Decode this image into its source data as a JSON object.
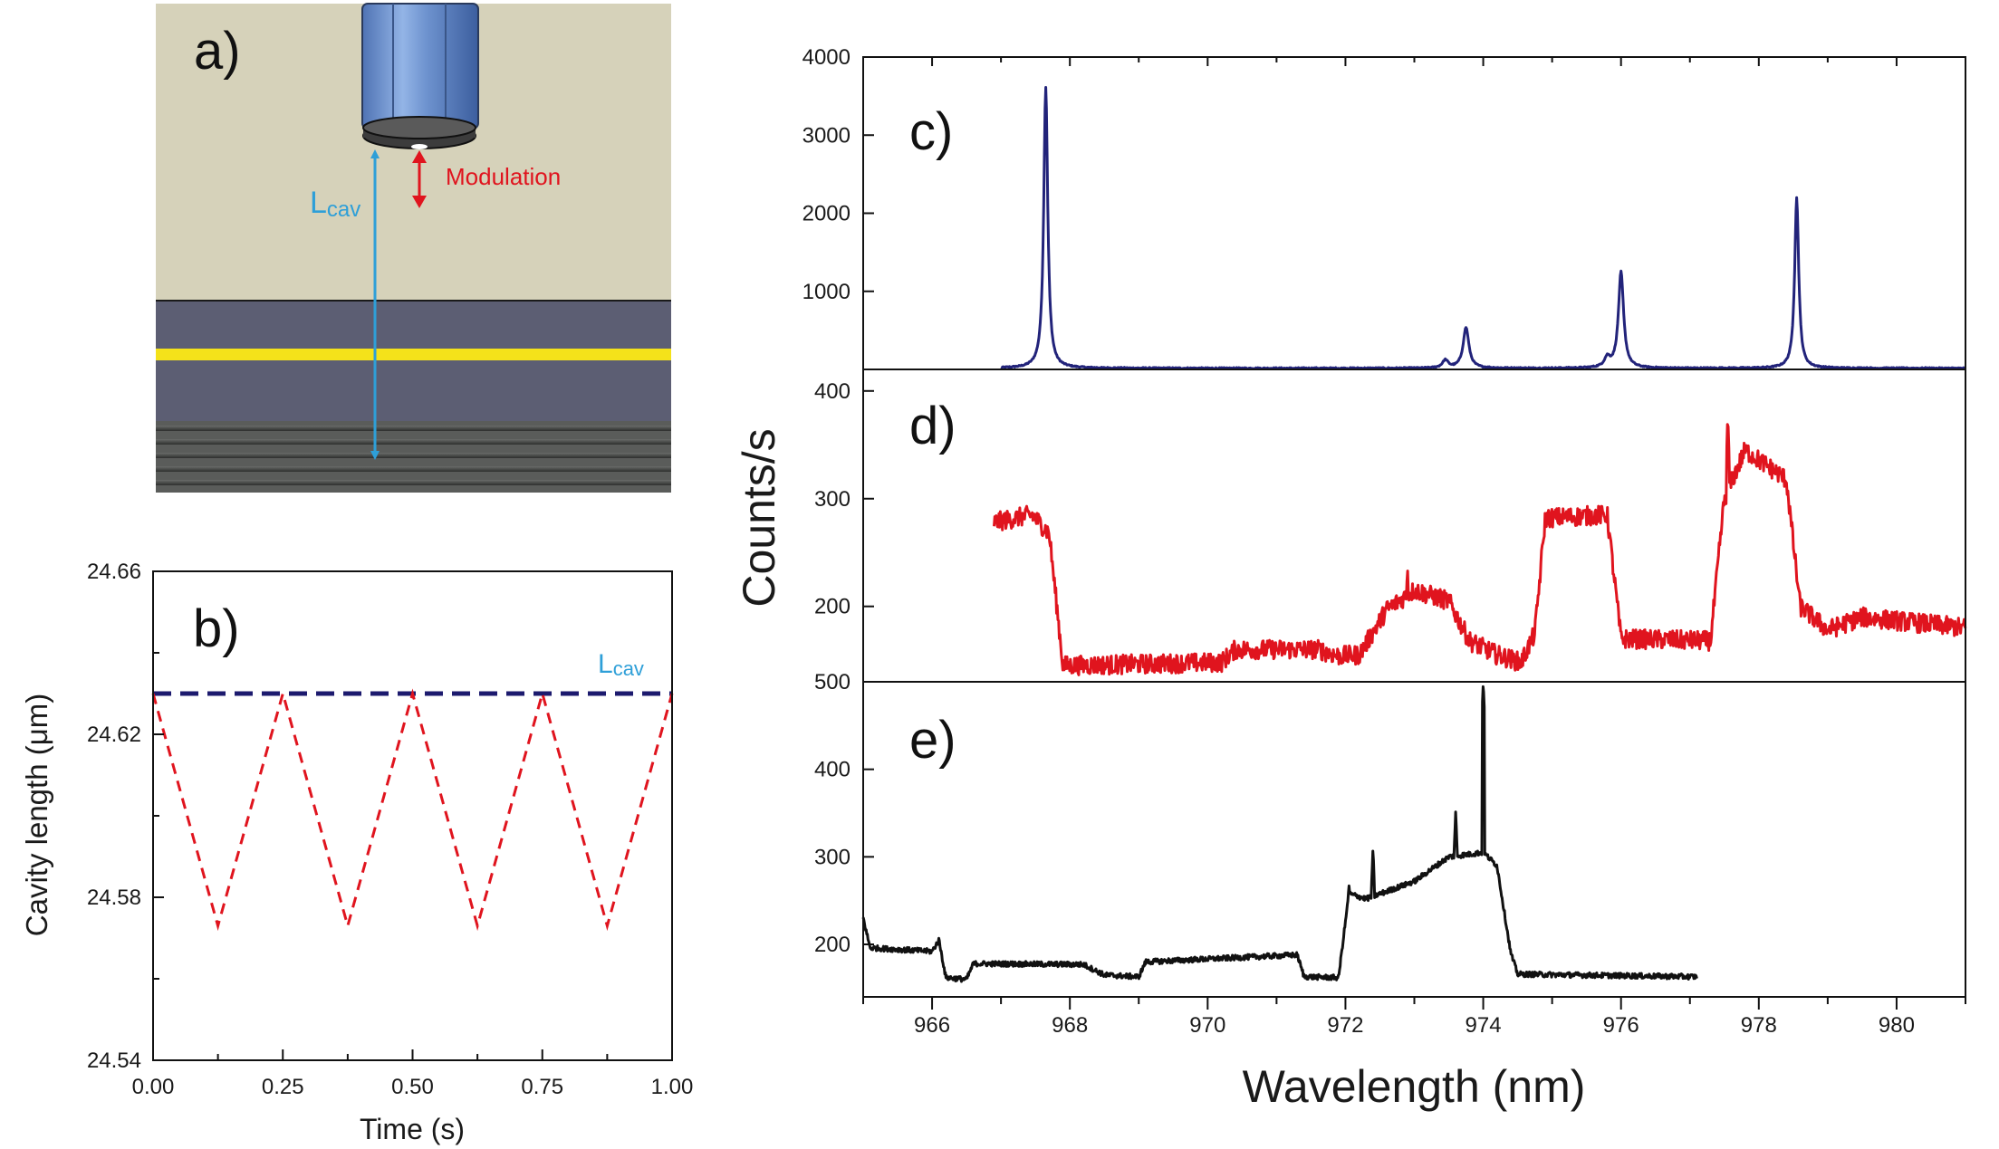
{
  "figure": {
    "panel_a": {
      "label": "a)",
      "lcav_main": "L",
      "lcav_sub": "cav",
      "modulation": "Modulation",
      "colors": {
        "background": "#d6d2ba",
        "layer": "#5c5e73",
        "gold": "#f4e21a",
        "fiber": "#6e93cf",
        "lcav": "#2e9fd8",
        "modulation": "#e0141e"
      }
    }
  },
  "chart_data": [
    {
      "id": "b",
      "panel_label": "b)",
      "type": "line",
      "xlabel": "Time (s)",
      "ylabel": "Cavity length (μm)",
      "xlim": [
        0,
        1.0
      ],
      "ylim": [
        24.54,
        24.66
      ],
      "xticks": [
        "0.00",
        "0.25",
        "0.50",
        "0.75",
        "1.00"
      ],
      "yticks": [
        "24.54",
        "24.58",
        "24.62",
        "24.66"
      ],
      "annotation_main": "L",
      "annotation_sub": "cav",
      "series": [
        {
          "style": "dashed",
          "color": "#1c1a6e",
          "x": [
            0,
            1.0
          ],
          "y": [
            24.63,
            24.63
          ]
        },
        {
          "style": "dashed",
          "color": "#e0141e",
          "x": [
            0,
            0.125,
            0.25,
            0.375,
            0.5,
            0.625,
            0.75,
            0.875,
            1.0
          ],
          "y": [
            24.63,
            24.573,
            24.63,
            24.573,
            24.63,
            24.573,
            24.63,
            24.573,
            24.63
          ]
        }
      ]
    },
    {
      "id": "c",
      "panel_label": "c)",
      "type": "line",
      "xlim": [
        965,
        981
      ],
      "ylim": [
        0,
        4000
      ],
      "yticks": [
        "1000",
        "2000",
        "3000",
        "4000"
      ],
      "series": [
        {
          "color": "#22237a",
          "x_start": 967.0,
          "x_end": 981,
          "baseline": 15,
          "peaks": [
            {
              "x": 967.65,
              "height": 3600,
              "width": 0.035
            },
            {
              "x": 973.45,
              "height": 100,
              "width": 0.05
            },
            {
              "x": 973.75,
              "height": 520,
              "width": 0.05
            },
            {
              "x": 975.8,
              "height": 120,
              "width": 0.05
            },
            {
              "x": 976.0,
              "height": 1230,
              "width": 0.045
            },
            {
              "x": 978.55,
              "height": 2180,
              "width": 0.035
            }
          ]
        }
      ]
    },
    {
      "id": "d",
      "panel_label": "d)",
      "type": "line",
      "xlim": [
        965,
        981
      ],
      "ylim": [
        130,
        420
      ],
      "yticks": [
        "200",
        "300",
        "400"
      ],
      "series": [
        {
          "color": "#e0141e",
          "x_start": 966.9,
          "x_end": 981,
          "noise": 9,
          "segments": [
            {
              "x": 966.9,
              "y": 278
            },
            {
              "x": 967.45,
              "y": 285
            },
            {
              "x": 967.7,
              "y": 268
            },
            {
              "x": 967.9,
              "y": 145
            },
            {
              "x": 970.2,
              "y": 148
            },
            {
              "x": 970.4,
              "y": 160
            },
            {
              "x": 971.6,
              "y": 160
            },
            {
              "x": 971.9,
              "y": 154
            },
            {
              "x": 972.2,
              "y": 155
            },
            {
              "x": 972.6,
              "y": 197
            },
            {
              "x": 973.0,
              "y": 215
            },
            {
              "x": 973.5,
              "y": 205
            },
            {
              "x": 973.8,
              "y": 168
            },
            {
              "x": 974.2,
              "y": 155
            },
            {
              "x": 974.55,
              "y": 148
            },
            {
              "x": 974.75,
              "y": 175
            },
            {
              "x": 974.9,
              "y": 282
            },
            {
              "x": 975.8,
              "y": 285
            },
            {
              "x": 976.0,
              "y": 170
            },
            {
              "x": 977.3,
              "y": 168
            },
            {
              "x": 977.5,
              "y": 300
            },
            {
              "x": 977.8,
              "y": 345
            },
            {
              "x": 978.4,
              "y": 318
            },
            {
              "x": 978.6,
              "y": 200
            },
            {
              "x": 979.0,
              "y": 178
            },
            {
              "x": 979.5,
              "y": 190
            },
            {
              "x": 981,
              "y": 180
            }
          ],
          "spikes": [
            {
              "x": 977.55,
              "y": 378
            },
            {
              "x": 972.9,
              "y": 238
            }
          ]
        }
      ]
    },
    {
      "id": "e",
      "panel_label": "e)",
      "type": "line",
      "xlim": [
        965,
        981
      ],
      "ylim": [
        140,
        500
      ],
      "yticks": [
        "200",
        "300",
        "400",
        "500"
      ],
      "xticks": [
        "966",
        "968",
        "970",
        "972",
        "974",
        "976",
        "978",
        "980"
      ],
      "xlabel": "Wavelength (nm)",
      "shared_ylabel": "Counts/s",
      "series": [
        {
          "color": "#111111",
          "x_start": 965,
          "x_end": 977.1,
          "noise": 3,
          "segments": [
            {
              "x": 965.0,
              "y": 230
            },
            {
              "x": 965.1,
              "y": 196
            },
            {
              "x": 966.0,
              "y": 192
            },
            {
              "x": 966.1,
              "y": 205
            },
            {
              "x": 966.2,
              "y": 162
            },
            {
              "x": 966.5,
              "y": 160
            },
            {
              "x": 966.6,
              "y": 178
            },
            {
              "x": 968.2,
              "y": 177
            },
            {
              "x": 968.5,
              "y": 165
            },
            {
              "x": 969.0,
              "y": 163
            },
            {
              "x": 969.1,
              "y": 180
            },
            {
              "x": 971.3,
              "y": 188
            },
            {
              "x": 971.4,
              "y": 163
            },
            {
              "x": 971.9,
              "y": 162
            },
            {
              "x": 972.05,
              "y": 258
            },
            {
              "x": 972.3,
              "y": 252
            },
            {
              "x": 973.0,
              "y": 272
            },
            {
              "x": 973.5,
              "y": 300
            },
            {
              "x": 974.0,
              "y": 305
            },
            {
              "x": 974.2,
              "y": 290
            },
            {
              "x": 974.4,
              "y": 190
            },
            {
              "x": 974.5,
              "y": 166
            },
            {
              "x": 977.1,
              "y": 163
            }
          ],
          "spikes": [
            {
              "x": 974.0,
              "y": 500
            },
            {
              "x": 973.6,
              "y": 352
            },
            {
              "x": 972.4,
              "y": 310
            },
            {
              "x": 972.05,
              "y": 272
            }
          ]
        }
      ]
    }
  ]
}
